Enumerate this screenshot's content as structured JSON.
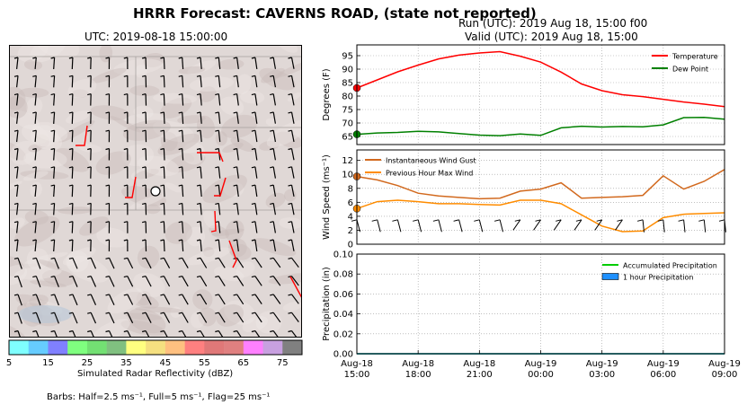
{
  "header": {
    "title": "HRRR Forecast: CAVERNS ROAD, (state not reported)",
    "run_line": "Run (UTC): 2019 Aug 18, 15:00 f00",
    "valid_line": "Valid (UTC): 2019 Aug 18, 15:00"
  },
  "map": {
    "title": "UTC: 2019-08-18 15:00:00",
    "colorbar_label": "Simulated Radar Reflectivity (dBZ)",
    "colorbar_colors": [
      "#7fffff",
      "#66ccff",
      "#8080ff",
      "#7fff7f",
      "#73e073",
      "#80c080",
      "#ffff80",
      "#f5e080",
      "#ffc080",
      "#ff8080",
      "#e07878",
      "#e08080",
      "#ff80ff",
      "#c8a0e0",
      "#808080"
    ],
    "colorbar_ticks": [
      "5",
      "15",
      "25",
      "35",
      "45",
      "55",
      "65",
      "75"
    ],
    "barbs_note": "Barbs: Half=2.5 ms⁻¹, Full=5 ms⁻¹, Flag=25 ms⁻¹"
  },
  "chart_data": [
    {
      "type": "line",
      "ylabel": "Degrees (F)",
      "ylim": [
        62,
        99
      ],
      "yticks": [
        "65",
        "70",
        "75",
        "80",
        "85",
        "90",
        "95"
      ],
      "grid": true,
      "legend_position": "top-right",
      "x_hours": [
        0,
        1,
        2,
        3,
        4,
        5,
        6,
        7,
        8,
        9,
        10,
        11,
        12,
        13,
        14,
        15,
        16,
        17,
        18
      ],
      "series": [
        {
          "name": "Temperature",
          "color": "#ff0000",
          "values": [
            83,
            86,
            89,
            91.5,
            93.8,
            95.2,
            96,
            96.5,
            94.8,
            92.6,
            88.9,
            84.5,
            82,
            80.5,
            79.8,
            78.8,
            77.8,
            77,
            76.1
          ]
        },
        {
          "name": "Dew Point",
          "color": "#008000",
          "values": [
            65.8,
            66.3,
            66.5,
            66.9,
            66.7,
            66.1,
            65.5,
            65.3,
            65.9,
            65.4,
            68.2,
            68.8,
            68.5,
            68.7,
            68.6,
            69.3,
            72,
            72.1,
            71.4
          ]
        }
      ]
    },
    {
      "type": "line",
      "ylabel": "Wind Speed (ms⁻¹)",
      "ylim": [
        0,
        13.5
      ],
      "yticks": [
        "0",
        "2",
        "4",
        "6",
        "8",
        "10",
        "12"
      ],
      "grid": true,
      "legend_position": "top-left",
      "x_hours": [
        0,
        1,
        2,
        3,
        4,
        5,
        6,
        7,
        8,
        9,
        10,
        11,
        12,
        13,
        14,
        15,
        16,
        17,
        18
      ],
      "series": [
        {
          "name": "Instantaneous Wind Gust",
          "color": "#d2691e",
          "values": [
            9.7,
            9.2,
            8.4,
            7.3,
            6.9,
            6.7,
            6.5,
            6.6,
            7.6,
            7.9,
            8.8,
            6.6,
            6.7,
            6.8,
            7,
            9.8,
            7.9,
            9,
            10.7
          ]
        },
        {
          "name": "Previous Hour Max Wind",
          "color": "#ff8c00",
          "values": [
            5.1,
            6.1,
            6.3,
            6.1,
            5.8,
            5.8,
            5.7,
            5.6,
            6.3,
            6.3,
            5.8,
            4.2,
            2.6,
            1.8,
            1.9,
            3.8,
            4.3,
            4.4,
            4.5
          ]
        }
      ]
    },
    {
      "type": "bar",
      "ylabel": "Precipitation (in)",
      "ylim": [
        0,
        0.1
      ],
      "yticks": [
        "0.00",
        "0.02",
        "0.04",
        "0.06",
        "0.08",
        "0.10"
      ],
      "grid": true,
      "legend_position": "top-right",
      "x_hours": [
        0,
        1,
        2,
        3,
        4,
        5,
        6,
        7,
        8,
        9,
        10,
        11,
        12,
        13,
        14,
        15,
        16,
        17,
        18
      ],
      "xtick_labels": [
        {
          "l1": "Aug-18",
          "l2": "15:00"
        },
        {
          "l1": "Aug-18",
          "l2": "18:00"
        },
        {
          "l1": "Aug-18",
          "l2": "21:00"
        },
        {
          "l1": "Aug-19",
          "l2": "00:00"
        },
        {
          "l1": "Aug-19",
          "l2": "03:00"
        },
        {
          "l1": "Aug-19",
          "l2": "06:00"
        },
        {
          "l1": "Aug-19",
          "l2": "09:00"
        }
      ],
      "series": [
        {
          "name": "Accumulated Precipitation",
          "color": "#00cc00",
          "values": [
            0,
            0,
            0,
            0,
            0,
            0,
            0,
            0,
            0,
            0,
            0,
            0,
            0,
            0,
            0,
            0,
            0,
            0,
            0
          ]
        },
        {
          "name": "1 hour Precipitation",
          "color": "#1e90ff",
          "values": [
            0,
            0,
            0,
            0,
            0,
            0,
            0,
            0,
            0,
            0,
            0,
            0,
            0,
            0,
            0,
            0,
            0,
            0,
            0
          ]
        }
      ]
    }
  ]
}
